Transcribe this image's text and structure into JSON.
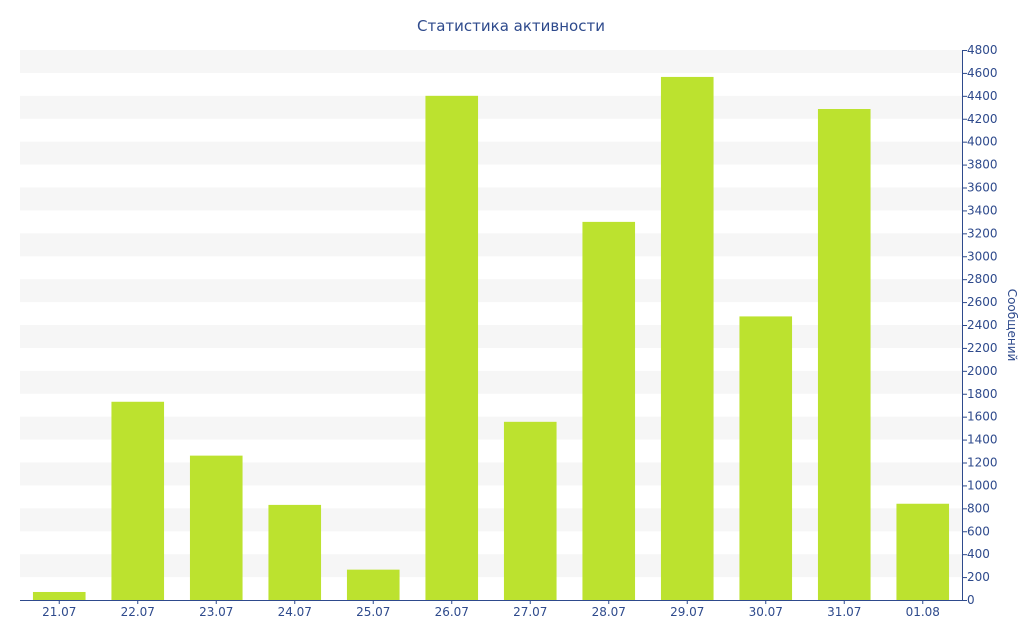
{
  "chart_data": {
    "type": "bar",
    "title": "Статистика активности",
    "xlabel": "",
    "ylabel": "Сообщений",
    "categories": [
      "21.07",
      "22.07",
      "23.07",
      "24.07",
      "25.07",
      "26.07",
      "27.07",
      "28.07",
      "29.07",
      "30.07",
      "31.07",
      "01.08"
    ],
    "values": [
      70,
      1730,
      1260,
      830,
      265,
      4400,
      1555,
      3300,
      4565,
      2475,
      4285,
      840
    ],
    "ylim": [
      0,
      4800
    ],
    "yticks": [
      0,
      200,
      400,
      600,
      800,
      1000,
      1200,
      1400,
      1600,
      1800,
      2000,
      2200,
      2400,
      2600,
      2800,
      3000,
      3200,
      3400,
      3600,
      3800,
      4000,
      4200,
      4400,
      4600,
      4800
    ],
    "y_axis_side": "right",
    "grid": "alternating horizontal bands",
    "legend": "none"
  },
  "colors": {
    "bar": "#bce22f",
    "text": "#2e4a8c",
    "axis": "#2e4a8c",
    "band": "#f6f6f6"
  }
}
